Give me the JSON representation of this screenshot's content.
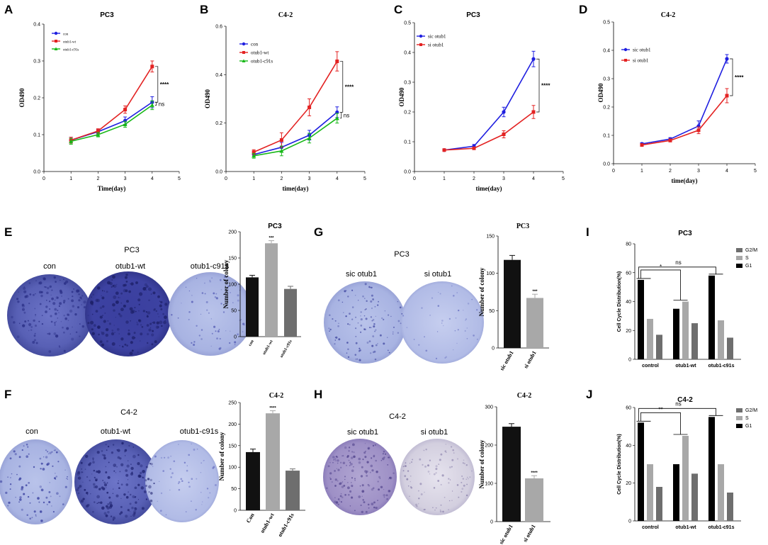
{
  "panels": {
    "A": "A",
    "B": "B",
    "C": "C",
    "D": "D",
    "E": "E",
    "F": "F",
    "G": "G",
    "H": "H",
    "I": "I",
    "J": "J"
  },
  "colors": {
    "blue": "#1f1fe0",
    "red": "#e32222",
    "green": "#17b817",
    "black_bar": "#111111",
    "light_bar": "#a8a8a8",
    "dark_bar": "#6e6e6e",
    "plate_blue": "#5a62b8",
    "plate_purple": "#8a78b8"
  },
  "photos": {
    "E": {
      "title": "PC3",
      "labels": [
        "con",
        "otub1-wt",
        "otub1-c91s"
      ]
    },
    "F": {
      "title": "C4-2",
      "labels": [
        "con",
        "otub1-wt",
        "otub1-c91s"
      ]
    },
    "G": {
      "title": "PC3",
      "labels": [
        "sic otub1",
        "si otub1"
      ]
    },
    "H": {
      "title": "C4-2",
      "labels": [
        "sic otub1",
        "si otub1"
      ]
    }
  },
  "chart_data": [
    {
      "id": "A",
      "type": "line",
      "title": "PC3",
      "xlabel": "Time(day)",
      "ylabel": "OD490",
      "x": [
        1,
        2,
        3,
        4
      ],
      "xlim": [
        0,
        5
      ],
      "ylim": [
        0,
        0.4
      ],
      "xticks": [
        "0",
        "1",
        "2",
        "3",
        "4",
        "5"
      ],
      "yticks": [
        "0.0",
        "0.1",
        "0.2",
        "0.3",
        "0.4"
      ],
      "series": [
        {
          "name": "con",
          "color": "#1f1fe0",
          "values": [
            0.085,
            0.108,
            0.138,
            0.188
          ],
          "err": [
            0.008,
            0.006,
            0.01,
            0.015
          ]
        },
        {
          "name": "otub1-wt",
          "color": "#e32222",
          "values": [
            0.085,
            0.11,
            0.168,
            0.285
          ],
          "err": [
            0.008,
            0.006,
            0.01,
            0.015
          ]
        },
        {
          "name": "otub1-c91s",
          "color": "#17b817",
          "values": [
            0.082,
            0.1,
            0.128,
            0.18
          ],
          "err": [
            0.008,
            0.006,
            0.008,
            0.012
          ]
        }
      ],
      "annotations": [
        "****",
        "ns"
      ]
    },
    {
      "id": "B",
      "type": "line",
      "title": "C4-2",
      "xlabel": "time(day)",
      "ylabel": "OD490",
      "x": [
        1,
        2,
        3,
        4
      ],
      "xlim": [
        0,
        5
      ],
      "ylim": [
        0,
        0.6
      ],
      "xticks": [
        "0",
        "1",
        "2",
        "3",
        "4",
        "5"
      ],
      "yticks": [
        "0.0",
        "0.2",
        "0.4",
        "0.6"
      ],
      "series": [
        {
          "name": "con",
          "color": "#1f1fe0",
          "values": [
            0.07,
            0.1,
            0.15,
            0.245
          ],
          "err": [
            0.01,
            0.02,
            0.02,
            0.022
          ]
        },
        {
          "name": "otub1-wt",
          "color": "#e32222",
          "values": [
            0.08,
            0.13,
            0.265,
            0.455
          ],
          "err": [
            0.01,
            0.03,
            0.035,
            0.04
          ]
        },
        {
          "name": "otub1-c91s",
          "color": "#17b817",
          "values": [
            0.065,
            0.085,
            0.138,
            0.22
          ],
          "err": [
            0.01,
            0.02,
            0.02,
            0.02
          ]
        }
      ],
      "annotations": [
        "****",
        "ns"
      ]
    },
    {
      "id": "C",
      "type": "line",
      "title": "PC3",
      "xlabel": "time(day)",
      "ylabel": "OD490",
      "x": [
        1,
        2,
        3,
        4
      ],
      "xlim": [
        0,
        5
      ],
      "ylim": [
        0,
        0.5
      ],
      "xticks": [
        "0",
        "1",
        "2",
        "3",
        "4",
        "5"
      ],
      "yticks": [
        "0.0",
        "0.1",
        "0.2",
        "0.3",
        "0.4",
        "0.5"
      ],
      "series": [
        {
          "name": "sic otub1",
          "color": "#1f1fe0",
          "values": [
            0.072,
            0.085,
            0.2,
            0.378
          ],
          "err": [
            0.004,
            0.006,
            0.016,
            0.026
          ]
        },
        {
          "name": "si otub1",
          "color": "#e32222",
          "values": [
            0.072,
            0.078,
            0.125,
            0.2
          ],
          "err": [
            0.004,
            0.004,
            0.012,
            0.022
          ]
        }
      ],
      "annotations": [
        "****"
      ]
    },
    {
      "id": "D",
      "type": "line",
      "title": "C4-2",
      "xlabel": "time(day)",
      "ylabel": "OD490",
      "x": [
        1,
        2,
        3,
        4
      ],
      "xlim": [
        0,
        5
      ],
      "ylim": [
        0,
        0.5
      ],
      "xticks": [
        "0",
        "1",
        "2",
        "3",
        "4",
        "5"
      ],
      "yticks": [
        "0.0",
        "0.1",
        "0.2",
        "0.3",
        "0.4",
        "0.5"
      ],
      "series": [
        {
          "name": "sic otub1",
          "color": "#1f1fe0",
          "values": [
            0.07,
            0.087,
            0.133,
            0.37
          ],
          "err": [
            0.004,
            0.005,
            0.018,
            0.015
          ]
        },
        {
          "name": "si otub1",
          "color": "#e32222",
          "values": [
            0.066,
            0.082,
            0.118,
            0.24
          ],
          "err": [
            0.004,
            0.005,
            0.012,
            0.025
          ]
        }
      ],
      "annotations": [
        "****"
      ]
    },
    {
      "id": "E-bar",
      "type": "bar",
      "title": "PC3",
      "ylabel": "Number of colony",
      "categories": [
        "con",
        "otub1-wt",
        "otub1-c91s"
      ],
      "values": [
        113,
        178,
        91
      ],
      "err": [
        4,
        5,
        5
      ],
      "colors": [
        "#111111",
        "#a8a8a8",
        "#6e6e6e"
      ],
      "ylim": [
        0,
        200
      ],
      "yticks": [
        "0",
        "50",
        "100",
        "150",
        "200"
      ],
      "sig": [
        "",
        "***",
        ""
      ]
    },
    {
      "id": "F-bar",
      "type": "bar",
      "title": "C4-2",
      "ylabel": "Number of colony",
      "categories": [
        "Con",
        "otub1-wt",
        "otub1-c91s"
      ],
      "values": [
        135,
        225,
        92
      ],
      "err": [
        7,
        6,
        4
      ],
      "colors": [
        "#111111",
        "#a8a8a8",
        "#6e6e6e"
      ],
      "ylim": [
        0,
        250
      ],
      "yticks": [
        "0",
        "50",
        "100",
        "150",
        "200",
        "250"
      ],
      "sig": [
        "",
        "****",
        ""
      ]
    },
    {
      "id": "G-bar",
      "type": "bar",
      "title": "PC3",
      "ylabel": "Number of colony",
      "categories": [
        "sic otub1",
        "si otub1"
      ],
      "values": [
        118,
        67
      ],
      "err": [
        6,
        5
      ],
      "colors": [
        "#111111",
        "#a8a8a8"
      ],
      "ylim": [
        0,
        150
      ],
      "yticks": [
        "0",
        "50",
        "100",
        "150"
      ],
      "sig": [
        "",
        "***"
      ]
    },
    {
      "id": "H-bar",
      "type": "bar",
      "title": "C4-2",
      "ylabel": "Number of colony",
      "categories": [
        "sic otub1",
        "si otub1"
      ],
      "values": [
        248,
        113
      ],
      "err": [
        8,
        7
      ],
      "colors": [
        "#111111",
        "#a8a8a8"
      ],
      "ylim": [
        0,
        300
      ],
      "yticks": [
        "0",
        "100",
        "200",
        "300"
      ],
      "sig": [
        "",
        "****"
      ]
    },
    {
      "id": "I",
      "type": "bar",
      "title": "PC3",
      "ylabel": "Cell Cycle Distribution(%)",
      "categories": [
        "control",
        "otub1-wt",
        "otub1-c91s"
      ],
      "series": [
        {
          "name": "G1",
          "color": "#000000",
          "values": [
            55,
            35,
            58
          ]
        },
        {
          "name": "S",
          "color": "#a8a8a8",
          "values": [
            28,
            40,
            27
          ]
        },
        {
          "name": "G2/M",
          "color": "#6e6e6e",
          "values": [
            17,
            25,
            15
          ]
        }
      ],
      "legend": [
        "G2/M",
        "S",
        "G1"
      ],
      "ylim": [
        0,
        80
      ],
      "yticks": [
        "0",
        "20",
        "40",
        "60",
        "80"
      ],
      "annotations": [
        "*",
        "ns"
      ]
    },
    {
      "id": "J",
      "type": "bar",
      "title": "C4-2",
      "ylabel": "Cell Cycle Distribution(%)",
      "categories": [
        "control",
        "otub1-wt",
        "otub1-c91s"
      ],
      "series": [
        {
          "name": "G1",
          "color": "#000000",
          "values": [
            52,
            30,
            55
          ]
        },
        {
          "name": "S",
          "color": "#a8a8a8",
          "values": [
            30,
            45,
            30
          ]
        },
        {
          "name": "G2/M",
          "color": "#6e6e6e",
          "values": [
            18,
            25,
            15
          ]
        }
      ],
      "legend": [
        "G2/M",
        "S",
        "G1"
      ],
      "ylim": [
        0,
        60
      ],
      "yticks": [
        "0",
        "20",
        "40",
        "60"
      ],
      "annotations": [
        "**",
        "ns"
      ]
    }
  ]
}
